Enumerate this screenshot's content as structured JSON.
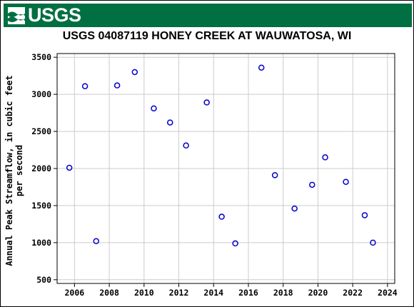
{
  "header": {
    "logo_text": "USGS",
    "logo_icon": "usgs-wave-icon",
    "brand_color": "#006f41"
  },
  "chart_data": {
    "type": "scatter",
    "title": "USGS 04087119 HONEY CREEK AT WAUWATOSA, WI",
    "xlabel": "",
    "ylabel_lines": [
      "Annual Peak Streamflow, in cubic feet",
      "per second"
    ],
    "xlim": [
      "2005-01-01",
      "2024-06-01"
    ],
    "ylim": [
      450,
      3550
    ],
    "x_ticks": [
      "2006",
      "2008",
      "2010",
      "2012",
      "2014",
      "2016",
      "2018",
      "2020",
      "2022",
      "2024"
    ],
    "y_ticks": [
      500,
      1000,
      1500,
      2000,
      2500,
      3000,
      3500
    ],
    "grid": true,
    "marker": "open-circle",
    "marker_color": "#0000cc",
    "series": [
      {
        "points": [
          {
            "x": "2005-09-15",
            "y": 2010
          },
          {
            "x": "2006-08-10",
            "y": 3110
          },
          {
            "x": "2007-04-01",
            "y": 1020
          },
          {
            "x": "2008-06-15",
            "y": 3120
          },
          {
            "x": "2009-06-20",
            "y": 3300
          },
          {
            "x": "2010-07-25",
            "y": 2810
          },
          {
            "x": "2011-07-01",
            "y": 2620
          },
          {
            "x": "2012-06-01",
            "y": 2310
          },
          {
            "x": "2013-08-10",
            "y": 2890
          },
          {
            "x": "2014-06-20",
            "y": 1350
          },
          {
            "x": "2015-04-01",
            "y": 990
          },
          {
            "x": "2016-10-01",
            "y": 3360
          },
          {
            "x": "2017-07-12",
            "y": 1910
          },
          {
            "x": "2018-08-28",
            "y": 1460
          },
          {
            "x": "2019-09-01",
            "y": 1780
          },
          {
            "x": "2020-06-01",
            "y": 2150
          },
          {
            "x": "2021-08-10",
            "y": 1820
          },
          {
            "x": "2022-09-10",
            "y": 1370
          },
          {
            "x": "2023-03-01",
            "y": 1000
          }
        ]
      }
    ]
  }
}
